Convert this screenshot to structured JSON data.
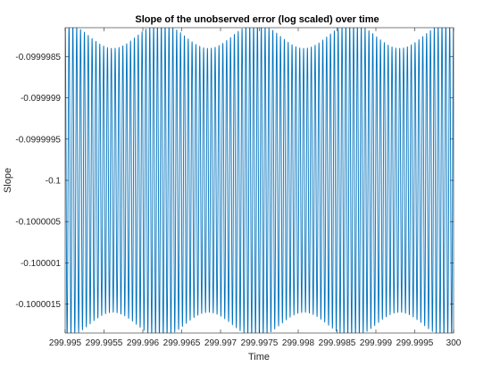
{
  "chart_data": {
    "type": "line",
    "title": "Slope of the unobserved error (log scaled) over time",
    "xlabel": "Time",
    "ylabel": "Slope",
    "xlim": [
      299.995,
      300
    ],
    "ylim": [
      -0.10000185,
      -0.09999815
    ],
    "x_ticks": [
      299.995,
      299.9955,
      299.996,
      299.9965,
      299.997,
      299.9975,
      299.998,
      299.9985,
      299.999,
      299.9995,
      300
    ],
    "x_tick_labels": [
      "299.995",
      "299.9955",
      "299.996",
      "299.9965",
      "299.997",
      "299.9975",
      "299.998",
      "299.9985",
      "299.999",
      "299.9995",
      "300"
    ],
    "y_ticks": [
      -0.0999985,
      -0.099999,
      -0.0999995,
      -0.1,
      -0.1000005,
      -0.100001,
      -0.1000015
    ],
    "y_tick_labels": [
      "-0.0999985",
      "-0.099999",
      "-0.0999995",
      "-0.1",
      "-0.1000005",
      "-0.100001",
      "-0.1000015"
    ],
    "grid": false,
    "legend": "none",
    "series": [
      {
        "color": "#0072BD",
        "description_of_signal": "rapid oscillation about -0.1 with about 101 cycles across the visible range, beat-modulated amplitude (peaks near -0.09999815 / -0.10000185 at maxima and about -0.0999984 / -0.1000016 at minima)",
        "center": -0.1,
        "oscillation_period": 4.95e-05,
        "amplitude_max": 1.9e-06,
        "amplitude_min": 1.6e-06,
        "modulation_period": 0.00123
      }
    ]
  }
}
